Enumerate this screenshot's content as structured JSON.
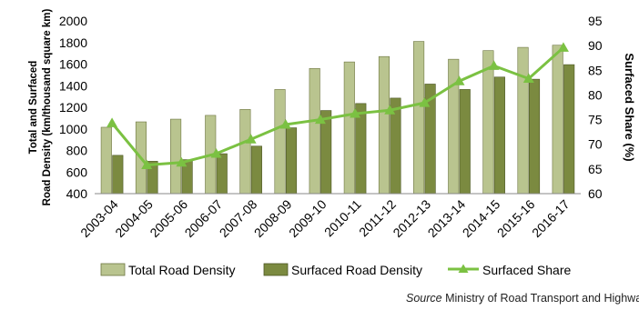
{
  "chart_data": {
    "type": "bar",
    "categories": [
      "2003-04",
      "2004-05",
      "2005-06",
      "2006-07",
      "2007-08",
      "2008-09",
      "2009-10",
      "2010-11",
      "2011-12",
      "2012-13",
      "2013-14",
      "2014-15",
      "2015-16",
      "2016-17"
    ],
    "series": [
      {
        "name": "Total Road Density",
        "type": "bar",
        "axis": "left",
        "color": "#b9c48f",
        "values": [
          1015,
          1065,
          1090,
          1125,
          1180,
          1365,
          1560,
          1620,
          1670,
          1810,
          1645,
          1725,
          1755,
          1775
        ]
      },
      {
        "name": "Surfaced Road Density",
        "type": "bar",
        "axis": "left",
        "color": "#7b8a40",
        "values": [
          755,
          700,
          715,
          770,
          840,
          1010,
          1170,
          1235,
          1285,
          1415,
          1365,
          1480,
          1460,
          1595
        ]
      },
      {
        "name": "Surfaced Share",
        "type": "line",
        "axis": "right",
        "color": "#7bc142",
        "marker": "triangle",
        "values": [
          74.3,
          65.8,
          66.3,
          68.1,
          71.0,
          74.0,
          75.0,
          76.2,
          76.9,
          78.4,
          82.8,
          85.9,
          83.3,
          89.6
        ]
      }
    ],
    "ylabel": [
      "Total and Surfaced",
      "Road Density (km/thousand square km)"
    ],
    "y2label": "Surfaced Share (%)",
    "ylim": [
      400,
      2000
    ],
    "yticks": [
      "400",
      "600",
      "800",
      "1000",
      "1200",
      "1400",
      "1600",
      "1800",
      "2000"
    ],
    "y2lim": [
      60,
      95
    ],
    "y2ticks": [
      "60",
      "65",
      "70",
      "75",
      "80",
      "85",
      "90",
      "95"
    ],
    "grid": false,
    "legend_position": "bottom"
  },
  "source": {
    "label": "Source",
    "text": " Ministry of Road Transport and Highwa"
  }
}
